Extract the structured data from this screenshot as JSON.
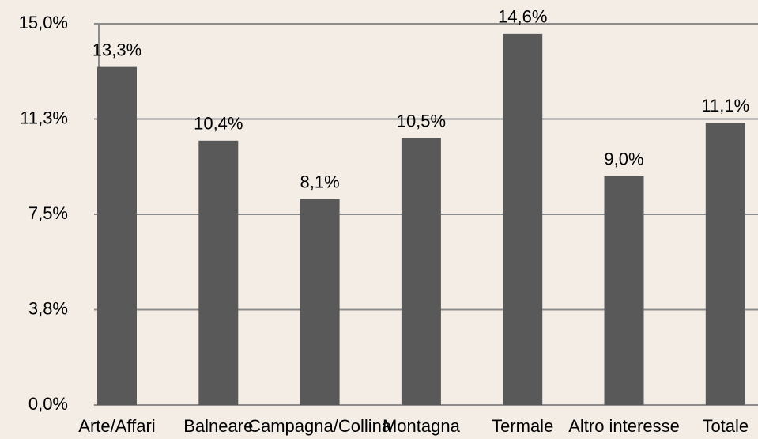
{
  "chart_data": {
    "type": "bar",
    "categories": [
      "Arte/Affari",
      "Balneare",
      "Campagna/Collina",
      "Montagna",
      "Termale",
      "Altro interesse",
      "Totale"
    ],
    "values": [
      13.3,
      10.4,
      8.1,
      10.5,
      14.6,
      9.0,
      11.1
    ],
    "value_labels": [
      "13,3%",
      "10,4%",
      "8,1%",
      "10,5%",
      "14,6%",
      "9,0%",
      "11,1%"
    ],
    "color": "#595959",
    "ylim": [
      0,
      15
    ],
    "yticks": [
      {
        "value": 0,
        "label": "0,0%"
      },
      {
        "value": 3.75,
        "label": "3,8%"
      },
      {
        "value": 7.5,
        "label": "7,5%"
      },
      {
        "value": 11.25,
        "label": "11,3%"
      },
      {
        "value": 15,
        "label": "15,0%"
      }
    ],
    "grid": true
  }
}
